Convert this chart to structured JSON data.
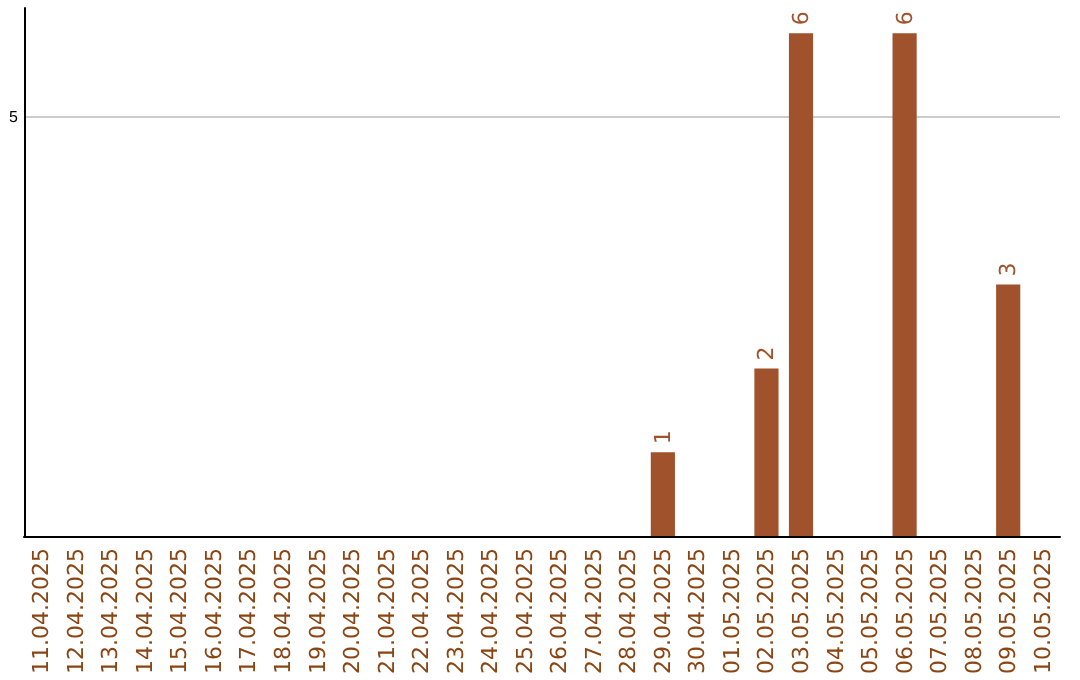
{
  "chart_data": {
    "type": "bar",
    "categories": [
      "11.04.2025",
      "12.04.2025",
      "13.04.2025",
      "14.04.2025",
      "15.04.2025",
      "16.04.2025",
      "17.04.2025",
      "18.04.2025",
      "19.04.2025",
      "20.04.2025",
      "21.04.2025",
      "22.04.2025",
      "23.04.2025",
      "24.04.2025",
      "25.04.2025",
      "26.04.2025",
      "27.04.2025",
      "28.04.2025",
      "29.04.2025",
      "30.04.2025",
      "01.05.2025",
      "02.05.2025",
      "03.05.2025",
      "04.05.2025",
      "05.05.2025",
      "06.05.2025",
      "07.05.2025",
      "08.05.2025",
      "09.05.2025",
      "10.05.2025"
    ],
    "values": [
      null,
      null,
      null,
      null,
      null,
      null,
      null,
      null,
      null,
      null,
      null,
      null,
      null,
      null,
      null,
      null,
      null,
      null,
      1,
      null,
      null,
      2,
      6,
      null,
      null,
      6,
      null,
      null,
      3,
      null
    ],
    "data_labels": true,
    "color": "#a0522d",
    "ylim": [
      0,
      6.3
    ],
    "yticks": [
      5
    ],
    "grid": "y"
  }
}
